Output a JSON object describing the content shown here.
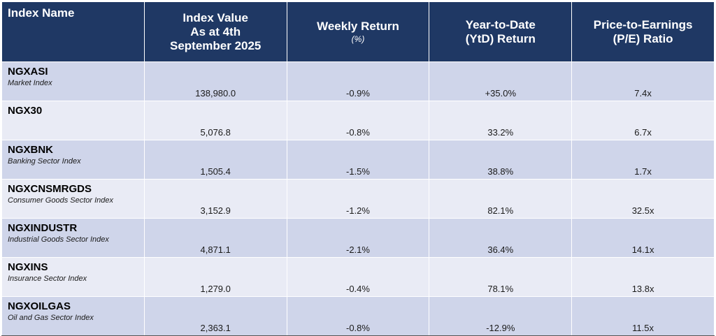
{
  "table": {
    "header": [
      {
        "lines": [
          "Index Name"
        ]
      },
      {
        "lines": [
          "Index Value",
          "As at 4th",
          "September 2025"
        ]
      },
      {
        "lines": [
          "Weekly Return"
        ],
        "sub": "(%)"
      },
      {
        "lines": [
          "Year-to-Date",
          "(YtD) Return"
        ]
      },
      {
        "lines": [
          "Price-to-Earnings",
          "(P/E) Ratio"
        ]
      }
    ],
    "rows": [
      {
        "name": "NGXASI",
        "description": "Market Index",
        "cells": [
          "138,980.0",
          "-0.9%",
          "+35.0%",
          "7.4x"
        ]
      },
      {
        "name": "NGX30",
        "cells": [
          "5,076.8",
          "-0.8%",
          "33.2%",
          "6.7x"
        ]
      },
      {
        "name": "NGXBNK",
        "description": "Banking Sector Index",
        "cells": [
          "1,505.4",
          "-1.5%",
          "38.8%",
          "1.7x"
        ]
      },
      {
        "name": "NGXCNSMRGDS",
        "description": "Consumer Goods Sector Index",
        "cells": [
          "3,152.9",
          "-1.2%",
          "82.1%",
          "32.5x"
        ]
      },
      {
        "name": "NGXINDUSTR",
        "description": "Industrial Goods Sector Index",
        "cells": [
          "4,871.1",
          "-2.1%",
          "36.4%",
          "14.1x"
        ]
      },
      {
        "name": "NGXINS",
        "description": "Insurance Sector Index",
        "cells": [
          "1,279.0",
          "-0.4%",
          "78.1%",
          "13.8x"
        ]
      },
      {
        "name": "NGXOILGAS",
        "description": "Oil and Gas Sector Index",
        "cells": [
          "2,363.1",
          "-0.8%",
          "-12.9%",
          "11.5x"
        ]
      }
    ]
  }
}
